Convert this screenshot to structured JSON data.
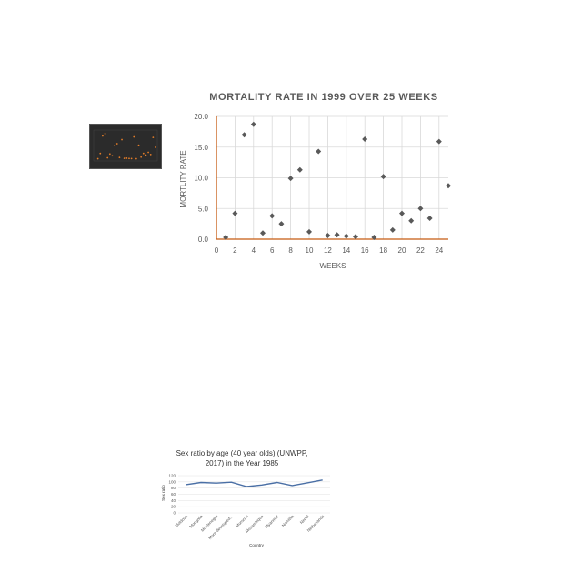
{
  "chart_data": [
    {
      "type": "scatter",
      "title": "MORTALITY RATE IN 1999 OVER 25 WEEKS",
      "xlabel": "WEEKS",
      "ylabel": "MORTLITY RATE",
      "xlim": [
        0,
        25
      ],
      "ylim": [
        0,
        20
      ],
      "xticks": [
        0,
        2,
        4,
        6,
        8,
        10,
        12,
        14,
        16,
        18,
        20,
        22,
        24
      ],
      "yticks": [
        "0.0",
        "5.0",
        "10.0",
        "15.0",
        "20.0"
      ],
      "grid": true,
      "marker": "diamond",
      "colors": {
        "points": "#595959",
        "axes": "#c55a11",
        "grid": "#d9d9d9",
        "title": "#595959"
      },
      "points": [
        {
          "x": 1,
          "y": 0.3
        },
        {
          "x": 2,
          "y": 4.2
        },
        {
          "x": 3,
          "y": 17.0
        },
        {
          "x": 4,
          "y": 18.7
        },
        {
          "x": 5,
          "y": 1.0
        },
        {
          "x": 6,
          "y": 3.8
        },
        {
          "x": 7,
          "y": 2.5
        },
        {
          "x": 8,
          "y": 9.9
        },
        {
          "x": 9,
          "y": 11.3
        },
        {
          "x": 10,
          "y": 1.2
        },
        {
          "x": 11,
          "y": 14.3
        },
        {
          "x": 12,
          "y": 0.6
        },
        {
          "x": 13,
          "y": 0.7
        },
        {
          "x": 14,
          "y": 0.5
        },
        {
          "x": 15,
          "y": 0.4
        },
        {
          "x": 16,
          "y": 16.3
        },
        {
          "x": 17,
          "y": 0.3
        },
        {
          "x": 18,
          "y": 10.2
        },
        {
          "x": 19,
          "y": 1.5
        },
        {
          "x": 20,
          "y": 4.2
        },
        {
          "x": 21,
          "y": 3.0
        },
        {
          "x": 22,
          "y": 5.0
        },
        {
          "x": 23,
          "y": 3.4
        },
        {
          "x": 24,
          "y": 15.9
        },
        {
          "x": 25,
          "y": 8.7
        }
      ]
    },
    {
      "type": "line",
      "title": "Sex ratio by age (40 year olds) (UNWPP, 2017) in the Year 1985",
      "title_lines": [
        "Sex ratio by age (40 year olds) (UNWPP,",
        "2017) in the Year 1985"
      ],
      "xlabel": "Country",
      "ylabel": "Sex ratio",
      "ylim": [
        0,
        120
      ],
      "yticks": [
        0,
        20,
        40,
        60,
        80,
        100,
        120
      ],
      "grid": true,
      "colors": {
        "line": "#4a6fa5",
        "grid": "#e0e0e0"
      },
      "categories": [
        "Moldova",
        "Mongolia",
        "Montenegro",
        "More developed...",
        "Morocco",
        "Mozambique",
        "Myanmar",
        "Namibia",
        "Nepal",
        "Netherlands"
      ],
      "values": [
        91,
        98,
        96,
        99,
        85,
        90,
        98,
        88,
        97,
        106
      ]
    }
  ]
}
